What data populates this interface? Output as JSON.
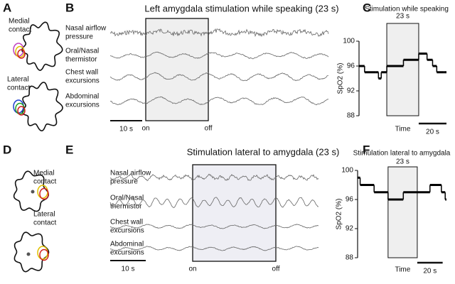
{
  "panel_letters": [
    "A",
    "B",
    "C",
    "D",
    "E",
    "F"
  ],
  "panel_a": {
    "contacts": [
      [
        "Medial",
        "contact"
      ],
      [
        "Lateral",
        "contact"
      ]
    ]
  },
  "panel_b": {
    "title": "Left amygdala stimulation while speaking (23 s)",
    "traces": [
      [
        "Nasal airflow",
        "pressure"
      ],
      [
        "Oral/Nasal",
        "thermistor"
      ],
      [
        "Chest wall",
        "excursions"
      ],
      [
        "Abdominal",
        "excursions"
      ]
    ],
    "scale_bar": "10 s",
    "on": "on",
    "off": "off"
  },
  "panel_d": {
    "contacts": [
      [
        "Medial",
        "contact"
      ],
      [
        "Lateral",
        "contact"
      ]
    ]
  },
  "panel_e": {
    "title": "Stimulation lateral to amygdala (23 s)",
    "traces": [
      [
        "Nasal airflow",
        "pressure"
      ],
      [
        "Oral/Nasal",
        "thermistor"
      ],
      [
        "Chest wall",
        "excursions"
      ],
      [
        "Abdominal",
        "excursions"
      ]
    ],
    "scale_bar": "10 s",
    "on": "on",
    "off": "off"
  },
  "chart_data": [
    {
      "type": "step",
      "title": "Stimulation while speaking",
      "y_label": "SpO2 (%)",
      "x_label": "Time",
      "stim_label": "23 s",
      "stim": [
        20,
        43
      ],
      "scale_bar": {
        "value": 20,
        "label": "20 s"
      },
      "xlim": [
        0,
        63
      ],
      "ylim": [
        88,
        100
      ],
      "yticks": [
        88,
        92,
        96,
        100
      ],
      "color": "#000000",
      "x": [
        0,
        4,
        12,
        14,
        16,
        20,
        32,
        43,
        49,
        53,
        56,
        61
      ],
      "series": [
        {
          "values": [
            96,
            95,
            95,
            94,
            95,
            96,
            97,
            98,
            97,
            96,
            95,
            95
          ]
        }
      ]
    },
    {
      "type": "step",
      "title": "Stimulation lateral to amygdala",
      "y_label": "SpO2 (%)",
      "x_label": "Time",
      "stim_label": "23 s",
      "stim": [
        24,
        47
      ],
      "scale_bar": {
        "value": 20,
        "label": "20 s"
      },
      "xlim": [
        0,
        70
      ],
      "ylim": [
        88,
        100
      ],
      "yticks": [
        88,
        92,
        96,
        100
      ],
      "color": "#000000",
      "x": [
        0,
        2,
        13,
        24,
        36,
        57,
        66,
        69
      ],
      "series": [
        {
          "values": [
            99,
            98,
            97,
            96,
            97,
            98,
            97,
            96
          ]
        }
      ]
    }
  ]
}
